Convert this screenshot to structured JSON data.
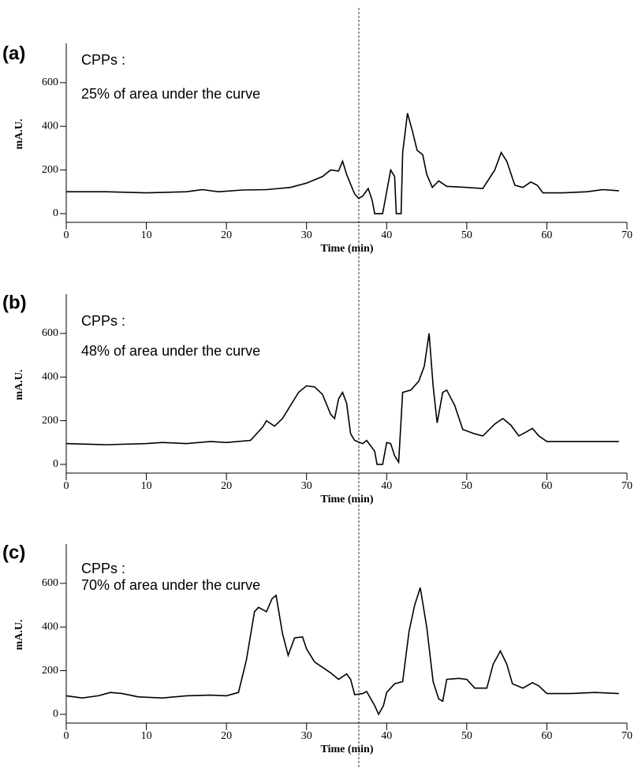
{
  "chart_data": [
    {
      "type": "line",
      "label": "(a)",
      "annotations": [
        "CPPs :",
        "25% of area under the curve"
      ],
      "xlabel": "Time (min)",
      "ylabel": "mA.U.",
      "color": "#000000",
      "xlim": [
        0,
        70
      ],
      "xticks": [
        0,
        10,
        20,
        30,
        40,
        50,
        60,
        70
      ],
      "ylim": [
        -40,
        780
      ],
      "yticks": [
        0,
        200,
        400,
        600
      ],
      "grid": false,
      "x": [
        0,
        5,
        10,
        15,
        17,
        19,
        22,
        25,
        28,
        30,
        32,
        33,
        34,
        34.5,
        35,
        36,
        36.5,
        37,
        37.7,
        38.2,
        38.5,
        39.5,
        40,
        40.5,
        41,
        41.2,
        41.8,
        42,
        42.6,
        43.2,
        43.8,
        44.5,
        45,
        45.7,
        46.5,
        47.5,
        50,
        52,
        53.5,
        54.3,
        55,
        56,
        57,
        58,
        58.8,
        59.5,
        62,
        65,
        67,
        69
      ],
      "values": [
        100,
        100,
        95,
        100,
        110,
        100,
        108,
        110,
        120,
        140,
        170,
        200,
        195,
        240,
        180,
        90,
        70,
        80,
        115,
        60,
        0,
        0,
        100,
        200,
        170,
        0,
        0,
        280,
        460,
        380,
        290,
        270,
        180,
        120,
        150,
        125,
        120,
        115,
        200,
        280,
        240,
        130,
        120,
        145,
        130,
        95,
        95,
        100,
        110,
        105
      ]
    },
    {
      "type": "line",
      "label": "(b)",
      "annotations": [
        "CPPs :",
        "48% of area under the curve"
      ],
      "xlabel": "Time (min)",
      "ylabel": "mA.U.",
      "color": "#000000",
      "xlim": [
        0,
        70
      ],
      "xticks": [
        0,
        10,
        20,
        30,
        40,
        50,
        60,
        70
      ],
      "ylim": [
        -40,
        780
      ],
      "yticks": [
        0,
        200,
        400,
        600
      ],
      "grid": false,
      "x": [
        0,
        5,
        10,
        12,
        15,
        18,
        20,
        23,
        24.5,
        25,
        26,
        27,
        28,
        29,
        30,
        31,
        32,
        33,
        33.5,
        34,
        34.5,
        35,
        35.5,
        36,
        37,
        37.5,
        38.5,
        38.8,
        39.5,
        40,
        40.5,
        41,
        41.5,
        42,
        43,
        44,
        44.7,
        45.3,
        45.8,
        46.3,
        47,
        47.5,
        48.5,
        49.5,
        51,
        52,
        53.5,
        54.5,
        55.5,
        56.5,
        57.5,
        58.2,
        59,
        60,
        64,
        69
      ],
      "values": [
        95,
        90,
        95,
        100,
        95,
        105,
        100,
        110,
        170,
        200,
        175,
        210,
        270,
        330,
        360,
        355,
        320,
        230,
        210,
        300,
        330,
        280,
        140,
        110,
        95,
        110,
        60,
        0,
        0,
        100,
        95,
        40,
        10,
        330,
        340,
        380,
        450,
        600,
        360,
        190,
        330,
        340,
        270,
        160,
        140,
        130,
        185,
        210,
        180,
        130,
        150,
        165,
        130,
        105,
        105,
        105
      ]
    },
    {
      "type": "line",
      "label": "(c)",
      "annotations": [
        "CPPs :",
        "70% of area under the curve"
      ],
      "xlabel": "Time (min)",
      "ylabel": "mA.U.",
      "color": "#000000",
      "xlim": [
        0,
        70
      ],
      "xticks": [
        0,
        10,
        20,
        30,
        40,
        50,
        60,
        70
      ],
      "ylim": [
        -40,
        780
      ],
      "yticks": [
        0,
        200,
        400,
        600
      ],
      "grid": false,
      "x": [
        0,
        2,
        4,
        5.5,
        7,
        9,
        12,
        15,
        18,
        20,
        21.5,
        22.5,
        23.5,
        24,
        25,
        25.7,
        26.2,
        27,
        27.7,
        28.5,
        29.5,
        30,
        31,
        33,
        34,
        35,
        35.5,
        36,
        37,
        37.5,
        38.5,
        39,
        39.6,
        40,
        41,
        42,
        42.8,
        43.5,
        44.2,
        45,
        45.8,
        46.5,
        47,
        47.5,
        49,
        50,
        51,
        52.5,
        53.3,
        54.2,
        55,
        55.7,
        57,
        58.2,
        59,
        60,
        63,
        66,
        69
      ],
      "values": [
        85,
        75,
        85,
        100,
        95,
        80,
        75,
        85,
        88,
        85,
        100,
        250,
        470,
        490,
        470,
        530,
        545,
        370,
        270,
        350,
        355,
        300,
        240,
        190,
        160,
        185,
        160,
        90,
        95,
        105,
        40,
        0,
        40,
        100,
        140,
        150,
        380,
        500,
        580,
        400,
        150,
        70,
        60,
        160,
        165,
        160,
        120,
        120,
        230,
        290,
        230,
        140,
        120,
        145,
        130,
        95,
        95,
        100,
        95
      ]
    }
  ]
}
